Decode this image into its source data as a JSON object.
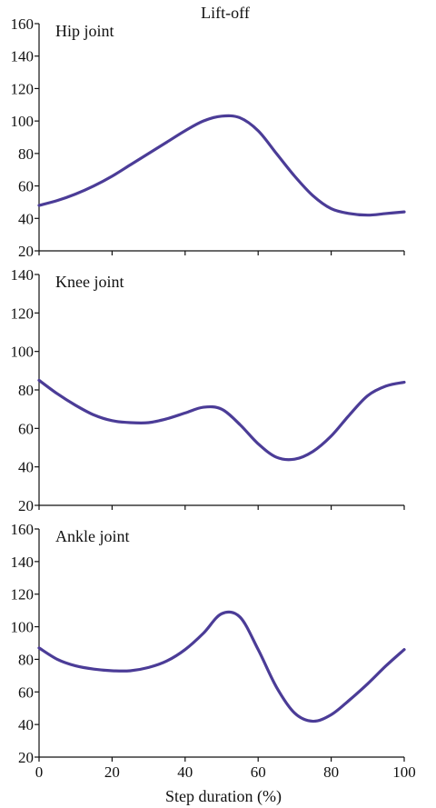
{
  "figure": {
    "title": "Lift-off",
    "xlabel": "Step duration (%)",
    "line_color": "#4b3c97",
    "axis_color": "#111111"
  },
  "chart_data": [
    {
      "type": "line",
      "title": "Hip joint",
      "xlabel": "",
      "ylabel": "",
      "xlim": [
        0,
        100
      ],
      "ylim": [
        20,
        160
      ],
      "yticks": [
        20,
        40,
        60,
        80,
        100,
        120,
        140,
        160
      ],
      "xticks": [],
      "grid": false,
      "series": [
        {
          "x": [
            0,
            5,
            10,
            15,
            20,
            25,
            30,
            35,
            40,
            45,
            50,
            55,
            60,
            65,
            70,
            75,
            80,
            85,
            90,
            95,
            100
          ],
          "y": [
            48,
            51,
            55,
            60,
            66,
            73,
            80,
            87,
            94,
            100,
            103,
            102,
            94,
            80,
            66,
            54,
            46,
            43,
            42,
            43,
            44
          ]
        }
      ]
    },
    {
      "type": "line",
      "title": "Knee joint",
      "xlabel": "",
      "ylabel": "",
      "xlim": [
        0,
        100
      ],
      "ylim": [
        20,
        140
      ],
      "yticks": [
        20,
        40,
        60,
        80,
        100,
        120,
        140
      ],
      "xticks": [],
      "grid": false,
      "series": [
        {
          "x": [
            0,
            5,
            10,
            15,
            20,
            25,
            30,
            35,
            40,
            45,
            50,
            55,
            60,
            65,
            70,
            75,
            80,
            85,
            90,
            95,
            100
          ],
          "y": [
            85,
            78,
            72,
            67,
            64,
            63,
            63,
            65,
            68,
            71,
            70,
            62,
            52,
            45,
            44,
            48,
            56,
            67,
            77,
            82,
            84
          ]
        }
      ]
    },
    {
      "type": "line",
      "title": "Ankle joint",
      "xlabel": "Step duration (%)",
      "ylabel": "",
      "xlim": [
        0,
        100
      ],
      "ylim": [
        20,
        160
      ],
      "yticks": [
        20,
        40,
        60,
        80,
        100,
        120,
        140,
        160
      ],
      "xticks": [
        0,
        20,
        40,
        60,
        80,
        100
      ],
      "grid": false,
      "series": [
        {
          "x": [
            0,
            5,
            10,
            15,
            20,
            25,
            30,
            35,
            40,
            45,
            50,
            55,
            60,
            65,
            70,
            75,
            80,
            85,
            90,
            95,
            100
          ],
          "y": [
            87,
            80,
            76,
            74,
            73,
            73,
            75,
            79,
            86,
            96,
            108,
            106,
            86,
            63,
            47,
            42,
            46,
            55,
            65,
            76,
            86
          ]
        }
      ]
    }
  ]
}
